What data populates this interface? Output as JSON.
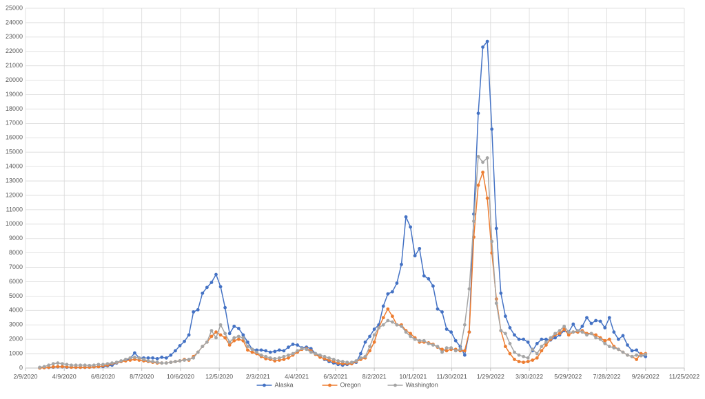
{
  "chart_data": {
    "type": "line",
    "x": [
      "3/2/2020",
      "3/9/2020",
      "3/16/2020",
      "3/23/2020",
      "3/30/2020",
      "4/6/2020",
      "4/13/2020",
      "4/20/2020",
      "4/27/2020",
      "5/4/2020",
      "5/11/2020",
      "5/18/2020",
      "5/25/2020",
      "6/1/2020",
      "6/8/2020",
      "6/15/2020",
      "6/22/2020",
      "6/29/2020",
      "7/6/2020",
      "7/13/2020",
      "7/20/2020",
      "7/27/2020",
      "8/3/2020",
      "8/10/2020",
      "8/17/2020",
      "8/24/2020",
      "8/31/2020",
      "9/7/2020",
      "9/14/2020",
      "9/21/2020",
      "9/28/2020",
      "10/5/2020",
      "10/12/2020",
      "10/19/2020",
      "10/26/2020",
      "11/2/2020",
      "11/9/2020",
      "11/16/2020",
      "11/23/2020",
      "11/30/2020",
      "12/7/2020",
      "12/14/2020",
      "12/21/2020",
      "12/28/2020",
      "1/4/2021",
      "1/11/2021",
      "1/18/2021",
      "1/25/2021",
      "2/1/2021",
      "2/8/2021",
      "2/15/2021",
      "2/22/2021",
      "3/1/2021",
      "3/8/2021",
      "3/15/2021",
      "3/22/2021",
      "3/29/2021",
      "4/5/2021",
      "4/12/2021",
      "4/19/2021",
      "4/26/2021",
      "5/3/2021",
      "5/10/2021",
      "5/17/2021",
      "5/24/2021",
      "5/31/2021",
      "6/7/2021",
      "6/14/2021",
      "6/21/2021",
      "6/28/2021",
      "7/5/2021",
      "7/12/2021",
      "7/19/2021",
      "7/26/2021",
      "8/2/2021",
      "8/9/2021",
      "8/16/2021",
      "8/23/2021",
      "8/30/2021",
      "9/6/2021",
      "9/13/2021",
      "9/20/2021",
      "9/27/2021",
      "10/4/2021",
      "10/11/2021",
      "10/18/2021",
      "10/25/2021",
      "11/1/2021",
      "11/8/2021",
      "11/15/2021",
      "11/22/2021",
      "11/29/2021",
      "12/6/2021",
      "12/13/2021",
      "12/20/2021",
      "12/27/2021",
      "1/3/2022",
      "1/10/2022",
      "1/17/2022",
      "1/24/2022",
      "1/31/2022",
      "2/7/2022",
      "2/14/2022",
      "2/21/2022",
      "2/28/2022",
      "3/7/2022",
      "3/14/2022",
      "3/21/2022",
      "3/28/2022",
      "4/4/2022",
      "4/11/2022",
      "4/18/2022",
      "4/25/2022",
      "5/2/2022",
      "5/9/2022",
      "5/16/2022",
      "5/23/2022",
      "5/30/2022",
      "6/6/2022",
      "6/13/2022",
      "6/20/2022",
      "6/27/2022",
      "7/4/2022",
      "7/11/2022",
      "7/18/2022",
      "7/25/2022",
      "8/1/2022",
      "8/8/2022",
      "8/15/2022",
      "8/22/2022",
      "8/29/2022",
      "9/5/2022",
      "9/12/2022",
      "9/19/2022",
      "9/26/2022"
    ],
    "series": [
      {
        "name": "Alaska",
        "color": "#4472c4",
        "values": [
          20,
          30,
          40,
          60,
          80,
          80,
          60,
          60,
          50,
          50,
          50,
          60,
          80,
          100,
          100,
          150,
          200,
          350,
          450,
          550,
          650,
          1050,
          700,
          700,
          700,
          700,
          650,
          750,
          700,
          900,
          1200,
          1550,
          1850,
          2300,
          3900,
          4050,
          5200,
          5600,
          5950,
          6500,
          5650,
          4200,
          2400,
          2900,
          2750,
          2300,
          1800,
          1300,
          1250,
          1250,
          1200,
          1100,
          1150,
          1250,
          1200,
          1450,
          1650,
          1600,
          1400,
          1450,
          1350,
          1000,
          800,
          600,
          450,
          350,
          250,
          200,
          250,
          300,
          400,
          1000,
          1800,
          2200,
          2700,
          3000,
          4300,
          5150,
          5300,
          5900,
          7200,
          10500,
          9800,
          7800,
          8300,
          6400,
          6200,
          5700,
          4100,
          3900,
          2700,
          2500,
          1900,
          1500,
          900,
          2500,
          10700,
          17700,
          22300,
          22700,
          16600,
          9700,
          5200,
          3600,
          2800,
          2300,
          2000,
          2000,
          1800,
          1200,
          1700,
          2000,
          2000,
          1950,
          2100,
          2300,
          2600,
          2500,
          3050,
          2500,
          2900,
          3500,
          3100,
          3300,
          3250,
          2800,
          3500,
          2500,
          2000,
          2250,
          1600,
          1200,
          1250,
          900,
          800
        ]
      },
      {
        "name": "Oregon",
        "color": "#ed7d31",
        "values": [
          0,
          20,
          50,
          80,
          100,
          100,
          80,
          60,
          50,
          50,
          50,
          60,
          80,
          100,
          150,
          200,
          300,
          380,
          450,
          500,
          550,
          600,
          550,
          500,
          450,
          400,
          350,
          350,
          350,
          400,
          450,
          500,
          600,
          550,
          800,
          1100,
          1500,
          1800,
          2200,
          2500,
          2300,
          2100,
          1600,
          1900,
          2000,
          1900,
          1250,
          1100,
          1000,
          800,
          650,
          600,
          500,
          550,
          600,
          700,
          900,
          1100,
          1300,
          1350,
          1200,
          950,
          750,
          650,
          550,
          450,
          350,
          300,
          300,
          300,
          450,
          600,
          700,
          1200,
          1800,
          2800,
          3500,
          4100,
          3600,
          3000,
          3000,
          2600,
          2400,
          2100,
          1800,
          1800,
          1750,
          1650,
          1450,
          1300,
          1200,
          1300,
          1300,
          1200,
          1200,
          2500,
          9100,
          12700,
          13600,
          11800,
          8000,
          4800,
          2600,
          1500,
          1000,
          600,
          450,
          400,
          450,
          550,
          700,
          1200,
          1600,
          2000,
          2300,
          2400,
          2700,
          2300,
          2500,
          2500,
          2600,
          2400,
          2400,
          2300,
          2100,
          1900,
          2000,
          1500,
          1300,
          1100,
          900,
          800,
          600,
          1000,
          1000
        ]
      },
      {
        "name": "Washington",
        "color": "#a5a5a5",
        "values": [
          50,
          100,
          200,
          300,
          350,
          300,
          250,
          200,
          200,
          200,
          200,
          180,
          200,
          250,
          250,
          300,
          350,
          400,
          500,
          600,
          700,
          750,
          700,
          600,
          500,
          450,
          400,
          350,
          350,
          400,
          450,
          500,
          550,
          600,
          700,
          1100,
          1500,
          1800,
          2600,
          2100,
          3000,
          2400,
          1800,
          2100,
          2200,
          2100,
          1500,
          1300,
          1100,
          900,
          800,
          700,
          650,
          700,
          800,
          900,
          1000,
          1200,
          1350,
          1300,
          1100,
          1000,
          900,
          800,
          700,
          600,
          500,
          450,
          400,
          400,
          500,
          700,
          800,
          1500,
          2300,
          2800,
          3000,
          3300,
          3200,
          3000,
          2900,
          2500,
          2200,
          2000,
          1900,
          1900,
          1700,
          1600,
          1500,
          1100,
          1400,
          1400,
          1200,
          1300,
          3000,
          5500,
          10200,
          14700,
          14300,
          14600,
          8800,
          4500,
          2600,
          2400,
          1700,
          1100,
          900,
          800,
          700,
          1300,
          1000,
          1500,
          1800,
          2100,
          2400,
          2600,
          2900,
          2500,
          2500,
          2600,
          2500,
          2300,
          2400,
          2100,
          2000,
          1700,
          1500,
          1400,
          1300,
          1100,
          900,
          800,
          900,
          850,
          950
        ]
      }
    ],
    "xlim": [
      "2/9/2020",
      "11/25/2022"
    ],
    "xticks": [
      "2/9/2020",
      "4/9/2020",
      "6/8/2020",
      "8/7/2020",
      "10/6/2020",
      "12/5/2020",
      "2/3/2021",
      "4/4/2021",
      "6/3/2021",
      "8/2/2021",
      "10/1/2021",
      "11/30/2021",
      "1/29/2022",
      "3/30/2022",
      "5/29/2022",
      "7/28/2022",
      "9/26/2022",
      "11/25/2022"
    ],
    "ylim": [
      0,
      25000
    ],
    "yticks": [
      0,
      1000,
      2000,
      3000,
      4000,
      5000,
      6000,
      7000,
      8000,
      9000,
      10000,
      11000,
      12000,
      13000,
      14000,
      15000,
      16000,
      17000,
      18000,
      19000,
      20000,
      21000,
      22000,
      23000,
      24000,
      25000
    ],
    "grid": true,
    "legend": "bottom"
  }
}
